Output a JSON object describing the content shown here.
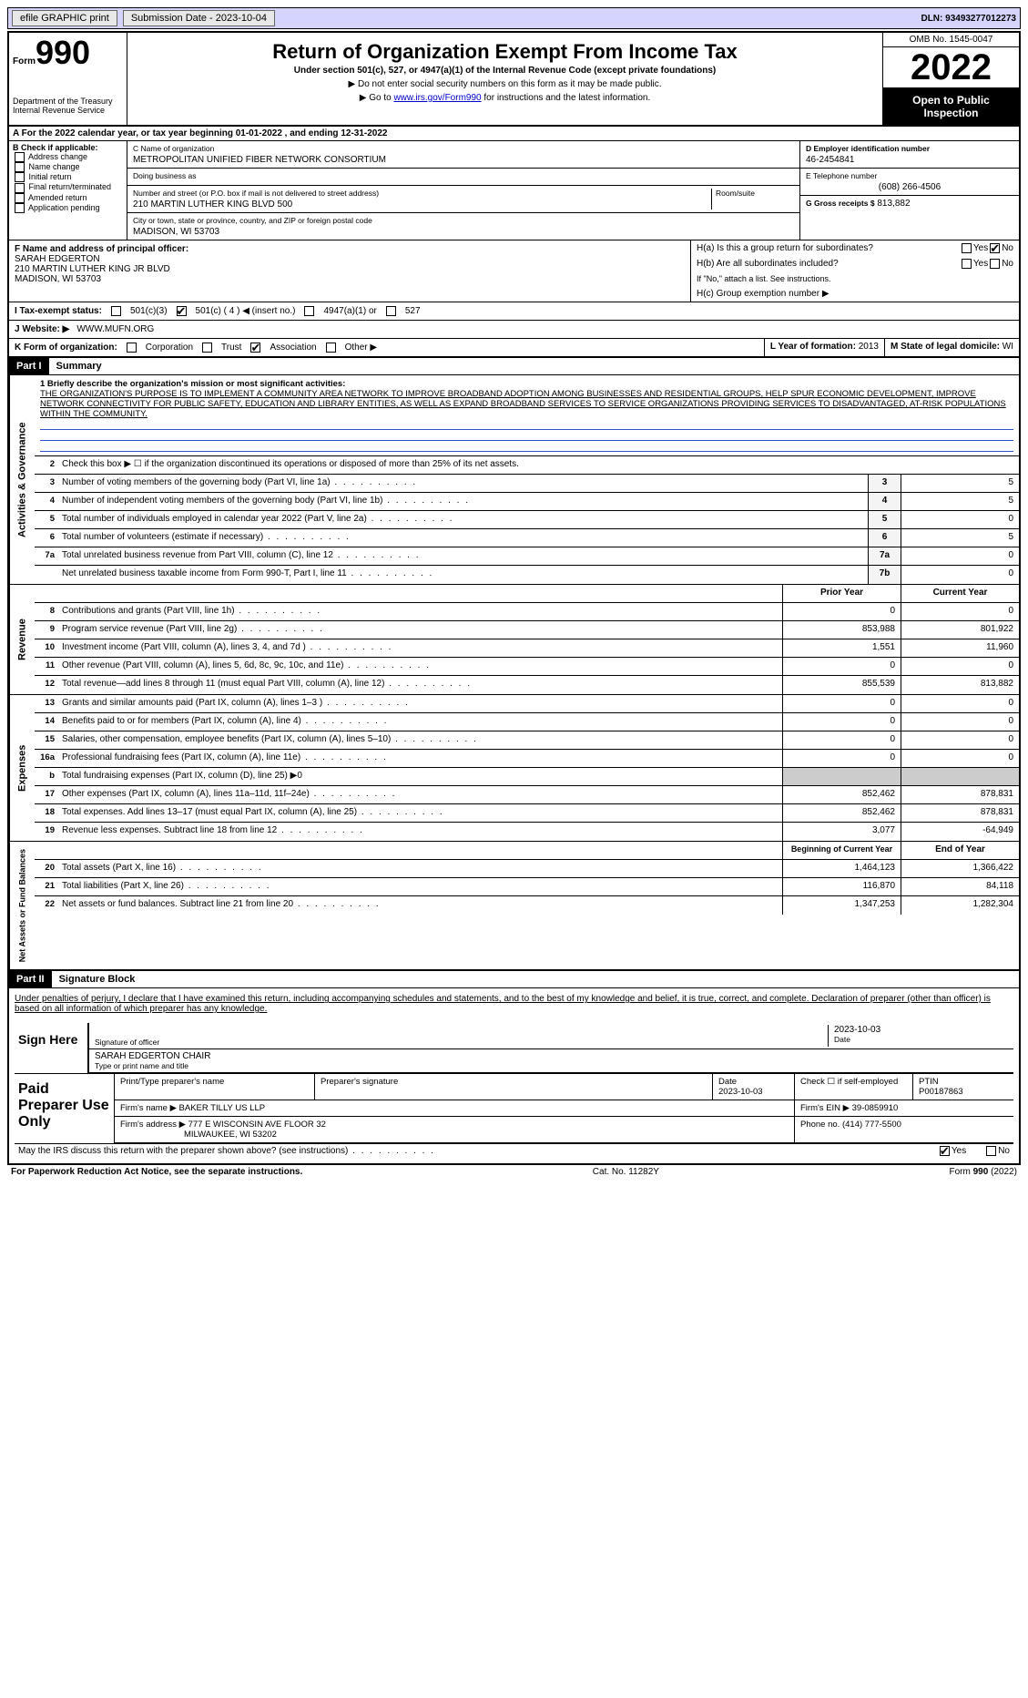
{
  "topbar": {
    "efile": "efile GRAPHIC print",
    "submission_label": "Submission Date - 2023-10-04",
    "dln": "DLN: 93493277012273"
  },
  "header": {
    "form_prefix": "Form",
    "form_number": "990",
    "dept": "Department of the Treasury",
    "irs": "Internal Revenue Service",
    "title": "Return of Organization Exempt From Income Tax",
    "subtitle": "Under section 501(c), 527, or 4947(a)(1) of the Internal Revenue Code (except private foundations)",
    "note1": "▶ Do not enter social security numbers on this form as it may be made public.",
    "note2_pre": "▶ Go to ",
    "note2_link": "www.irs.gov/Form990",
    "note2_post": " for instructions and the latest information.",
    "omb": "OMB No. 1545-0047",
    "year": "2022",
    "open": "Open to Public Inspection"
  },
  "row_a": "A For the 2022 calendar year, or tax year beginning 01-01-2022    , and ending 12-31-2022",
  "box_b": {
    "title": "B Check if applicable:",
    "items": [
      "Address change",
      "Name change",
      "Initial return",
      "Final return/terminated",
      "Amended return",
      "Application pending"
    ]
  },
  "box_c": {
    "name_lbl": "C Name of organization",
    "name": "METROPOLITAN UNIFIED FIBER NETWORK CONSORTIUM",
    "dba_lbl": "Doing business as",
    "dba": "",
    "street_lbl": "Number and street (or P.O. box if mail is not delivered to street address)",
    "street": "210 MARTIN LUTHER KING BLVD 500",
    "room_lbl": "Room/suite",
    "city_lbl": "City or town, state or province, country, and ZIP or foreign postal code",
    "city": "MADISON, WI  53703"
  },
  "box_d": {
    "ein_lbl": "D Employer identification number",
    "ein": "46-2454841",
    "tel_lbl": "E Telephone number",
    "tel": "(608) 266-4506",
    "gross_lbl": "G Gross receipts $",
    "gross": "813,882"
  },
  "box_f": {
    "lbl": "F  Name and address of principal officer:",
    "name": "SARAH EDGERTON",
    "addr1": "210 MARTIN LUTHER KING JR BLVD",
    "addr2": "MADISON, WI  53703"
  },
  "box_h": {
    "a": "H(a)  Is this a group return for subordinates?",
    "b": "H(b)  Are all subordinates included?",
    "b_note": "If \"No,\" attach a list. See instructions.",
    "c": "H(c)  Group exemption number ▶",
    "yes": "Yes",
    "no": "No"
  },
  "row_i": {
    "label": "I  Tax-exempt status:",
    "opts": [
      "501(c)(3)",
      "501(c) ( 4 ) ◀ (insert no.)",
      "4947(a)(1) or",
      "527"
    ]
  },
  "row_j": {
    "label": "J  Website: ▶",
    "val": "WWW.MUFN.ORG"
  },
  "row_k": {
    "label": "K Form of organization:",
    "opts": [
      "Corporation",
      "Trust",
      "Association",
      "Other ▶"
    ]
  },
  "row_lm": {
    "l_lbl": "L Year of formation:",
    "l_val": "2013",
    "m_lbl": "M State of legal domicile:",
    "m_val": "WI"
  },
  "part1": {
    "title": "Part I",
    "name": "Summary",
    "mission_lbl": "1  Briefly describe the organization's mission or most significant activities:",
    "mission": "THE ORGANIZATION'S PURPOSE IS TO IMPLEMENT A COMMUNITY AREA NETWORK TO IMPROVE BROADBAND ADOPTION AMONG BUSINESSES AND RESIDENTIAL GROUPS, HELP SPUR ECONOMIC DEVELOPMENT, IMPROVE NETWORK CONNECTIVITY FOR PUBLIC SAFETY, EDUCATION AND LIBRARY ENTITIES, AS WELL AS EXPAND BROADBAND SERVICES TO SERVICE ORGANIZATIONS PROVIDING SERVICES TO DISADVANTAGED, AT-RISK POPULATIONS WITHIN THE COMMUNITY.",
    "line2": "Check this box ▶ ☐  if the organization discontinued its operations or disposed of more than 25% of its net assets.",
    "side_gov": "Activities & Governance",
    "side_rev": "Revenue",
    "side_exp": "Expenses",
    "side_net": "Net Assets or Fund Balances",
    "gov_lines": [
      {
        "n": "3",
        "t": "Number of voting members of the governing body (Part VI, line 1a)",
        "box": "3",
        "v": "5"
      },
      {
        "n": "4",
        "t": "Number of independent voting members of the governing body (Part VI, line 1b)",
        "box": "4",
        "v": "5"
      },
      {
        "n": "5",
        "t": "Total number of individuals employed in calendar year 2022 (Part V, line 2a)",
        "box": "5",
        "v": "0"
      },
      {
        "n": "6",
        "t": "Total number of volunteers (estimate if necessary)",
        "box": "6",
        "v": "5"
      },
      {
        "n": "7a",
        "t": "Total unrelated business revenue from Part VIII, column (C), line 12",
        "box": "7a",
        "v": "0"
      },
      {
        "n": "",
        "t": "Net unrelated business taxable income from Form 990-T, Part I, line 11",
        "box": "7b",
        "v": "0"
      }
    ],
    "col_prior": "Prior Year",
    "col_current": "Current Year",
    "rev_lines": [
      {
        "n": "8",
        "t": "Contributions and grants (Part VIII, line 1h)",
        "p": "0",
        "c": "0"
      },
      {
        "n": "9",
        "t": "Program service revenue (Part VIII, line 2g)",
        "p": "853,988",
        "c": "801,922"
      },
      {
        "n": "10",
        "t": "Investment income (Part VIII, column (A), lines 3, 4, and 7d )",
        "p": "1,551",
        "c": "11,960"
      },
      {
        "n": "11",
        "t": "Other revenue (Part VIII, column (A), lines 5, 6d, 8c, 9c, 10c, and 11e)",
        "p": "0",
        "c": "0"
      },
      {
        "n": "12",
        "t": "Total revenue—add lines 8 through 11 (must equal Part VIII, column (A), line 12)",
        "p": "855,539",
        "c": "813,882"
      }
    ],
    "exp_lines": [
      {
        "n": "13",
        "t": "Grants and similar amounts paid (Part IX, column (A), lines 1–3 )",
        "p": "0",
        "c": "0"
      },
      {
        "n": "14",
        "t": "Benefits paid to or for members (Part IX, column (A), line 4)",
        "p": "0",
        "c": "0"
      },
      {
        "n": "15",
        "t": "Salaries, other compensation, employee benefits (Part IX, column (A), lines 5–10)",
        "p": "0",
        "c": "0"
      },
      {
        "n": "16a",
        "t": "Professional fundraising fees (Part IX, column (A), line 11e)",
        "p": "0",
        "c": "0"
      },
      {
        "n": "b",
        "t": "Total fundraising expenses (Part IX, column (D), line 25) ▶0",
        "p": "",
        "c": "",
        "shade": true
      },
      {
        "n": "17",
        "t": "Other expenses (Part IX, column (A), lines 11a–11d, 11f–24e)",
        "p": "852,462",
        "c": "878,831"
      },
      {
        "n": "18",
        "t": "Total expenses. Add lines 13–17 (must equal Part IX, column (A), line 25)",
        "p": "852,462",
        "c": "878,831"
      },
      {
        "n": "19",
        "t": "Revenue less expenses. Subtract line 18 from line 12",
        "p": "3,077",
        "c": "-64,949"
      }
    ],
    "col_begin": "Beginning of Current Year",
    "col_end": "End of Year",
    "net_lines": [
      {
        "n": "20",
        "t": "Total assets (Part X, line 16)",
        "p": "1,464,123",
        "c": "1,366,422"
      },
      {
        "n": "21",
        "t": "Total liabilities (Part X, line 26)",
        "p": "116,870",
        "c": "84,118"
      },
      {
        "n": "22",
        "t": "Net assets or fund balances. Subtract line 21 from line 20",
        "p": "1,347,253",
        "c": "1,282,304"
      }
    ]
  },
  "part2": {
    "title": "Part II",
    "name": "Signature Block",
    "decl": "Under penalties of perjury, I declare that I have examined this return, including accompanying schedules and statements, and to the best of my knowledge and belief, it is true, correct, and complete. Declaration of preparer (other than officer) is based on all information of which preparer has any knowledge.",
    "sign_here": "Sign Here",
    "sig_officer": "Signature of officer",
    "sig_date_lbl": "Date",
    "sig_date": "2023-10-03",
    "sig_name": "SARAH EDGERTON CHAIR",
    "sig_name_lbl": "Type or print name and title",
    "paid": "Paid Preparer Use Only",
    "prep_name_lbl": "Print/Type preparer's name",
    "prep_sig_lbl": "Preparer's signature",
    "prep_date_lbl": "Date",
    "prep_date": "2023-10-03",
    "prep_self": "Check ☐ if self-employed",
    "ptin_lbl": "PTIN",
    "ptin": "P00187863",
    "firm_name_lbl": "Firm's name    ▶",
    "firm_name": "BAKER TILLY US LLP",
    "firm_ein_lbl": "Firm's EIN ▶",
    "firm_ein": "39-0859910",
    "firm_addr_lbl": "Firm's address ▶",
    "firm_addr1": "777 E WISCONSIN AVE FLOOR 32",
    "firm_addr2": "MILWAUKEE, WI  53202",
    "firm_phone_lbl": "Phone no.",
    "firm_phone": "(414) 777-5500",
    "discuss": "May the IRS discuss this return with the preparer shown above? (see instructions)",
    "yes": "Yes",
    "no": "No"
  },
  "footer": {
    "pra": "For Paperwork Reduction Act Notice, see the separate instructions.",
    "cat": "Cat. No. 11282Y",
    "form": "Form 990 (2022)"
  }
}
